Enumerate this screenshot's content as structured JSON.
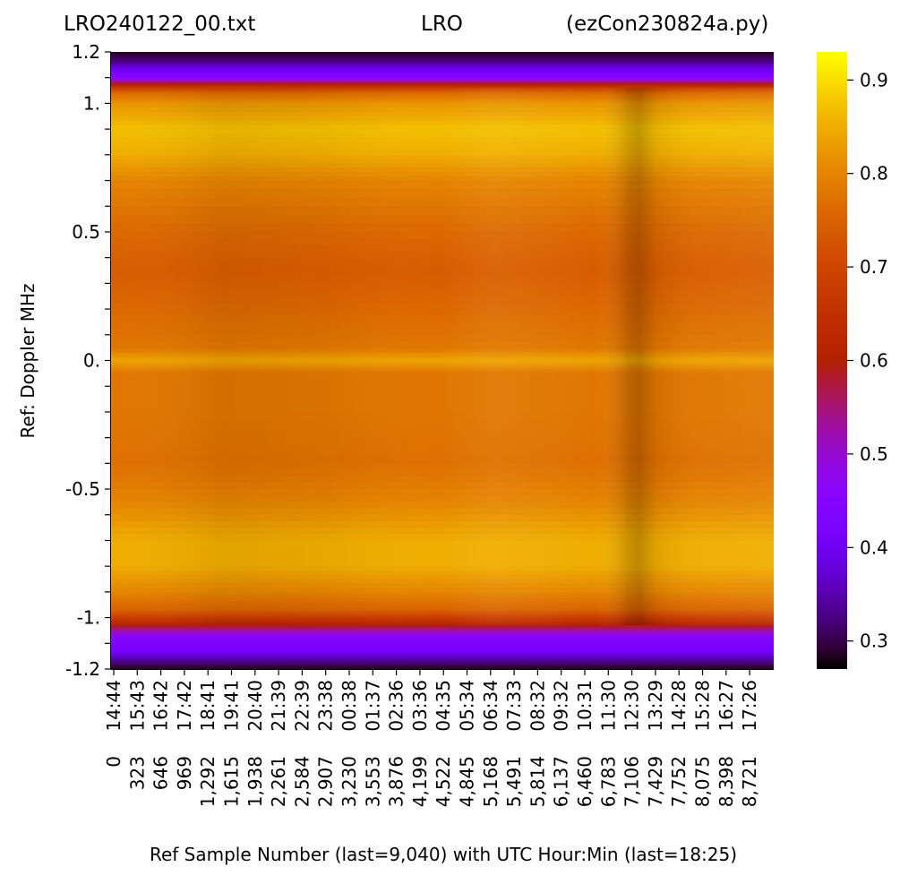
{
  "title": {
    "left": "LRO240122_00.txt",
    "center": "LRO",
    "right": "(ezCon230824a.py)"
  },
  "chart_data": {
    "type": "heatmap",
    "title": "LRO240122_00.txt LRO (ezCon230824a.py)",
    "xlabel": "Ref Sample Number (last=9,040) with UTC Hour:Min (last=18:25)",
    "ylabel": "Ref:  Doppler MHz",
    "colormap": "gnuplot",
    "ylim": [
      -1.2,
      1.2
    ],
    "xlim": [
      0,
      9040
    ],
    "y_ticks": [
      {
        "value": 1.2,
        "label": "1.2"
      },
      {
        "value": 1.0,
        "label": "1."
      },
      {
        "value": 0.5,
        "label": "0.5"
      },
      {
        "value": 0.0,
        "label": "0."
      },
      {
        "value": -0.5,
        "label": "-0.5"
      },
      {
        "value": -1.0,
        "label": "-1."
      },
      {
        "value": -1.2,
        "label": "-1.2"
      }
    ],
    "x_ticks": [
      {
        "sample": "0",
        "time": "14:44"
      },
      {
        "sample": "323",
        "time": "15:43"
      },
      {
        "sample": "646",
        "time": "16:42"
      },
      {
        "sample": "969",
        "time": "17:42"
      },
      {
        "sample": "1,292",
        "time": "18:41"
      },
      {
        "sample": "1,615",
        "time": "19:41"
      },
      {
        "sample": "1,938",
        "time": "20:40"
      },
      {
        "sample": "2,261",
        "time": "21:39"
      },
      {
        "sample": "2,584",
        "time": "22:39"
      },
      {
        "sample": "2,907",
        "time": "23:38"
      },
      {
        "sample": "3,230",
        "time": "00:38"
      },
      {
        "sample": "3,553",
        "time": "01:37"
      },
      {
        "sample": "3,876",
        "time": "02:36"
      },
      {
        "sample": "4,199",
        "time": "03:36"
      },
      {
        "sample": "4,522",
        "time": "04:35"
      },
      {
        "sample": "4,845",
        "time": "05:34"
      },
      {
        "sample": "5,168",
        "time": "06:34"
      },
      {
        "sample": "5,491",
        "time": "07:33"
      },
      {
        "sample": "5,814",
        "time": "08:32"
      },
      {
        "sample": "6,137",
        "time": "09:32"
      },
      {
        "sample": "6,460",
        "time": "10:31"
      },
      {
        "sample": "6,783",
        "time": "11:30"
      },
      {
        "sample": "7,106",
        "time": "12:30"
      },
      {
        "sample": "7,429",
        "time": "13:29"
      },
      {
        "sample": "7,752",
        "time": "14:28"
      },
      {
        "sample": "8,075",
        "time": "15:28"
      },
      {
        "sample": "8,398",
        "time": "16:27"
      },
      {
        "sample": "8,721",
        "time": "17:26"
      }
    ],
    "colorbar": {
      "range": [
        0.27,
        0.93
      ],
      "ticks": [
        {
          "value": 0.3,
          "label": "0.3"
        },
        {
          "value": 0.4,
          "label": "0.4"
        },
        {
          "value": 0.5,
          "label": "0.5"
        },
        {
          "value": 0.6,
          "label": "0.6"
        },
        {
          "value": 0.7,
          "label": "0.7"
        },
        {
          "value": 0.8,
          "label": "0.8"
        },
        {
          "value": 0.9,
          "label": "0.9"
        }
      ]
    },
    "frequency_profile": [
      {
        "y": 1.2,
        "v": 0.28
      },
      {
        "y": 1.16,
        "v": 0.33
      },
      {
        "y": 1.13,
        "v": 0.4
      },
      {
        "y": 1.1,
        "v": 0.45
      },
      {
        "y": 1.08,
        "v": 0.55
      },
      {
        "y": 1.06,
        "v": 0.68
      },
      {
        "y": 1.04,
        "v": 0.76
      },
      {
        "y": 1.0,
        "v": 0.82
      },
      {
        "y": 0.9,
        "v": 0.87
      },
      {
        "y": 0.8,
        "v": 0.85
      },
      {
        "y": 0.7,
        "v": 0.8
      },
      {
        "y": 0.5,
        "v": 0.76
      },
      {
        "y": 0.35,
        "v": 0.74
      },
      {
        "y": 0.2,
        "v": 0.76
      },
      {
        "y": 0.05,
        "v": 0.78
      },
      {
        "y": 0.0,
        "v": 0.84
      },
      {
        "y": -0.05,
        "v": 0.78
      },
      {
        "y": -0.2,
        "v": 0.78
      },
      {
        "y": -0.4,
        "v": 0.77
      },
      {
        "y": -0.55,
        "v": 0.8
      },
      {
        "y": -0.7,
        "v": 0.85
      },
      {
        "y": -0.8,
        "v": 0.85
      },
      {
        "y": -0.9,
        "v": 0.8
      },
      {
        "y": -0.97,
        "v": 0.75
      },
      {
        "y": -1.0,
        "v": 0.68
      },
      {
        "y": -1.03,
        "v": 0.6
      },
      {
        "y": -1.06,
        "v": 0.5
      },
      {
        "y": -1.09,
        "v": 0.43
      },
      {
        "y": -1.13,
        "v": 0.42
      },
      {
        "y": -1.16,
        "v": 0.35
      },
      {
        "y": -1.2,
        "v": 0.28
      }
    ],
    "time_profile": [
      {
        "x": 0,
        "d": 0.0
      },
      {
        "x": 1500,
        "d": -0.01
      },
      {
        "x": 3000,
        "d": -0.005
      },
      {
        "x": 4500,
        "d": 0.0
      },
      {
        "x": 5200,
        "d": 0.01
      },
      {
        "x": 6000,
        "d": 0.005
      },
      {
        "x": 6600,
        "d": 0.0
      },
      {
        "x": 7050,
        "d": -0.025
      },
      {
        "x": 7200,
        "d": -0.035
      },
      {
        "x": 7450,
        "d": -0.01
      },
      {
        "x": 8000,
        "d": 0.005
      },
      {
        "x": 9040,
        "d": 0.01
      }
    ]
  }
}
